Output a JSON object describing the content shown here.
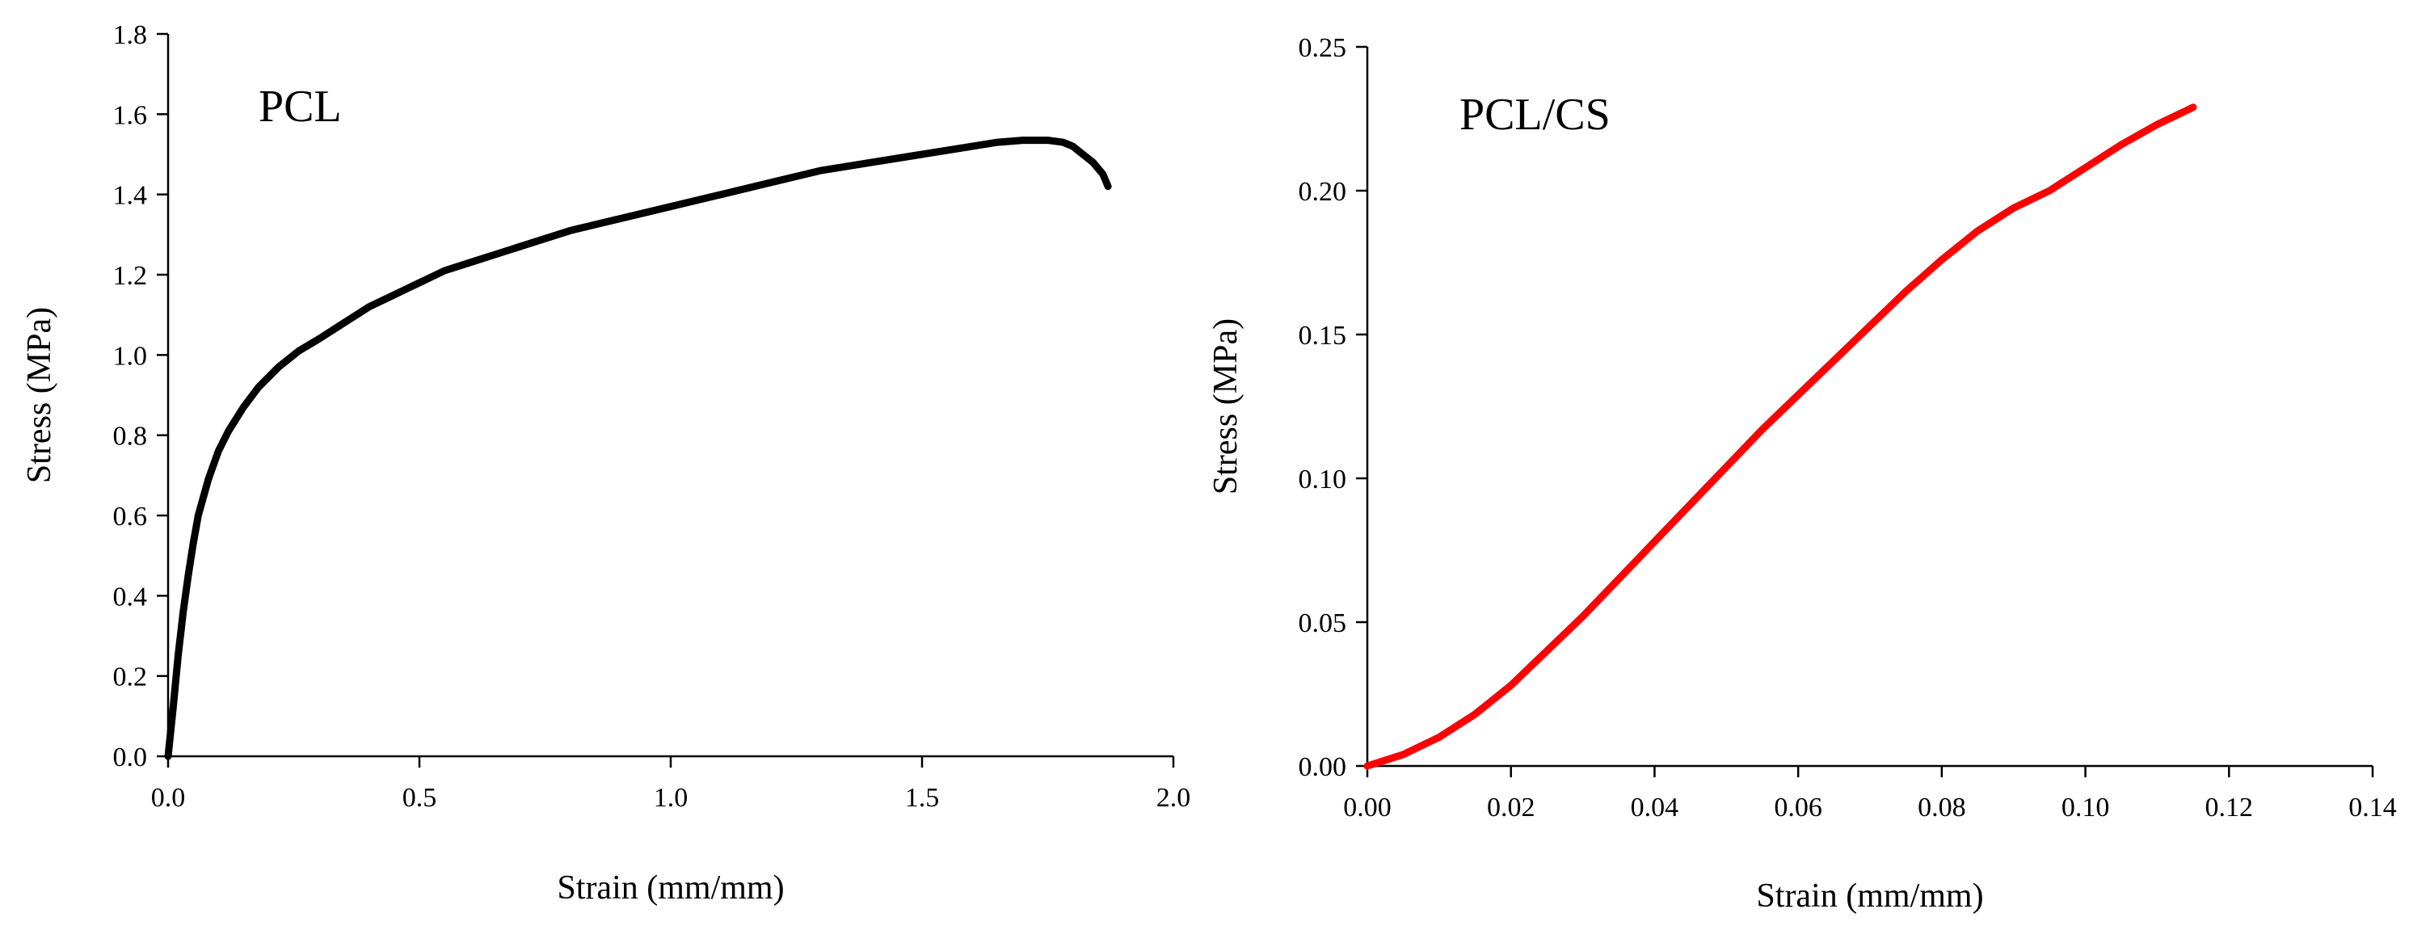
{
  "chart_data": [
    {
      "type": "line",
      "title": "PCL",
      "xlabel": "Strain (mm/mm)",
      "ylabel": "Stress (MPa)",
      "xlim": [
        0,
        2.0
      ],
      "ylim": [
        0,
        1.8
      ],
      "xticks": [
        "0.0",
        "0.5",
        "1.0",
        "1.5",
        "2.0"
      ],
      "yticks": [
        "0.0",
        "0.2",
        "0.4",
        "0.6",
        "0.8",
        "1.0",
        "1.2",
        "1.4",
        "1.6",
        "1.8"
      ],
      "grid": false,
      "color": "#000000",
      "series": [
        {
          "x": [
            0.0,
            0.01,
            0.02,
            0.03,
            0.04,
            0.05,
            0.06,
            0.08,
            0.1,
            0.12,
            0.15,
            0.18,
            0.22,
            0.26,
            0.3,
            0.35,
            0.4,
            0.45,
            0.5,
            0.55,
            0.6,
            0.7,
            0.8,
            0.9,
            1.0,
            1.1,
            1.2,
            1.3,
            1.4,
            1.5,
            1.6,
            1.65,
            1.7,
            1.75,
            1.78,
            1.8,
            1.82,
            1.84,
            1.86,
            1.87
          ],
          "y": [
            0.0,
            0.12,
            0.25,
            0.36,
            0.45,
            0.53,
            0.6,
            0.69,
            0.76,
            0.81,
            0.87,
            0.92,
            0.97,
            1.01,
            1.04,
            1.08,
            1.12,
            1.15,
            1.18,
            1.21,
            1.23,
            1.27,
            1.31,
            1.34,
            1.37,
            1.4,
            1.43,
            1.46,
            1.48,
            1.5,
            1.52,
            1.53,
            1.535,
            1.535,
            1.53,
            1.52,
            1.5,
            1.48,
            1.45,
            1.42
          ]
        }
      ]
    },
    {
      "type": "line",
      "title": "PCL/CS",
      "xlabel": "Strain (mm/mm)",
      "ylabel": "Stress (MPa)",
      "xlim": [
        0,
        0.14
      ],
      "ylim": [
        0,
        0.25
      ],
      "xticks": [
        "0.00",
        "0.02",
        "0.04",
        "0.06",
        "0.08",
        "0.10",
        "0.12",
        "0.14"
      ],
      "yticks": [
        "0.00",
        "0.05",
        "0.10",
        "0.15",
        "0.20",
        "0.25"
      ],
      "grid": false,
      "color": "#ff0000",
      "series": [
        {
          "x": [
            0.0,
            0.005,
            0.01,
            0.015,
            0.02,
            0.025,
            0.03,
            0.035,
            0.04,
            0.045,
            0.05,
            0.055,
            0.06,
            0.065,
            0.07,
            0.075,
            0.08,
            0.085,
            0.09,
            0.095,
            0.1,
            0.105,
            0.11,
            0.115
          ],
          "y": [
            0.0,
            0.004,
            0.01,
            0.018,
            0.028,
            0.04,
            0.052,
            0.065,
            0.078,
            0.091,
            0.104,
            0.117,
            0.129,
            0.141,
            0.153,
            0.165,
            0.176,
            0.186,
            0.194,
            0.2,
            0.208,
            0.216,
            0.223,
            0.229
          ]
        }
      ]
    }
  ]
}
